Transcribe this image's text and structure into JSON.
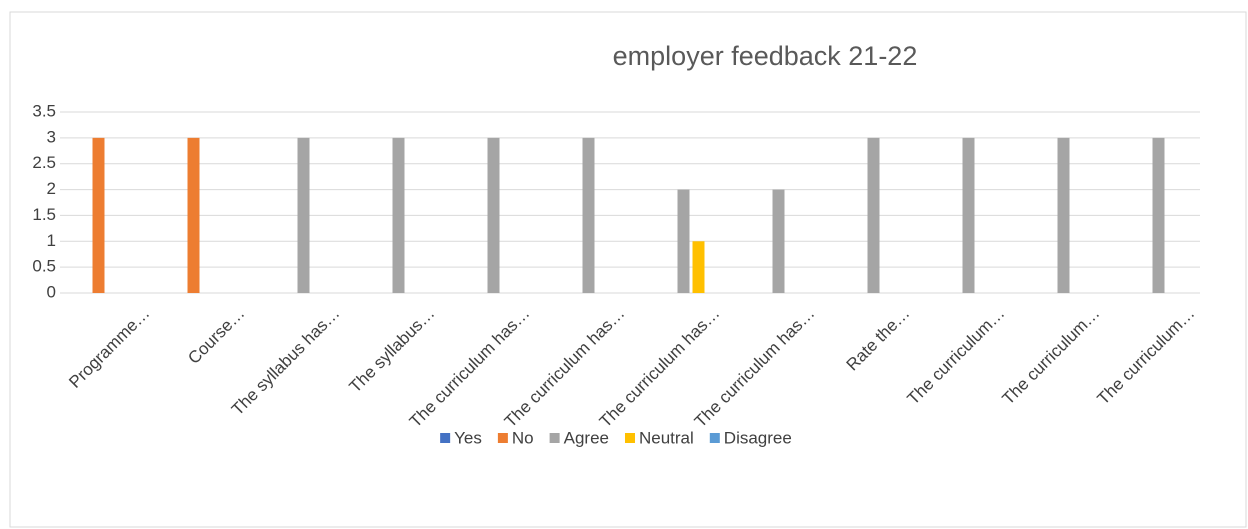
{
  "chart_data": {
    "type": "bar",
    "title": "employer feedback 21-22",
    "categories": [
      "Programme…",
      "Course…",
      "The syllabus has…",
      "The syllabus…",
      "The curriculum has…",
      "The curriculum has…",
      "The curriculum has…",
      "The curriculum has…",
      "Rate the…",
      "The curriculum…",
      "The curriculum…",
      "The curriculum…"
    ],
    "series": [
      {
        "name": "Yes",
        "color": "#4472c4",
        "values": [
          0,
          0,
          0,
          0,
          0,
          0,
          0,
          0,
          0,
          0,
          0,
          0
        ]
      },
      {
        "name": "No",
        "color": "#ed7d31",
        "values": [
          3,
          3,
          0,
          0,
          0,
          0,
          0,
          0,
          0,
          0,
          0,
          0
        ]
      },
      {
        "name": "Agree",
        "color": "#a5a5a5",
        "values": [
          0,
          0,
          3,
          3,
          3,
          3,
          2,
          2,
          3,
          3,
          3,
          3
        ]
      },
      {
        "name": "Neutral",
        "color": "#ffc000",
        "values": [
          0,
          0,
          0,
          0,
          0,
          0,
          1,
          0,
          0,
          0,
          0,
          0
        ]
      },
      {
        "name": "Disagree",
        "color": "#5b9bd5",
        "values": [
          0,
          0,
          0,
          0,
          0,
          0,
          0,
          0,
          0,
          0,
          0,
          0
        ]
      }
    ],
    "ylim": [
      0,
      3.5
    ],
    "yticks": [
      0,
      0.5,
      1,
      1.5,
      2,
      2.5,
      3,
      3.5
    ],
    "grid": true,
    "legend": "bottom"
  }
}
